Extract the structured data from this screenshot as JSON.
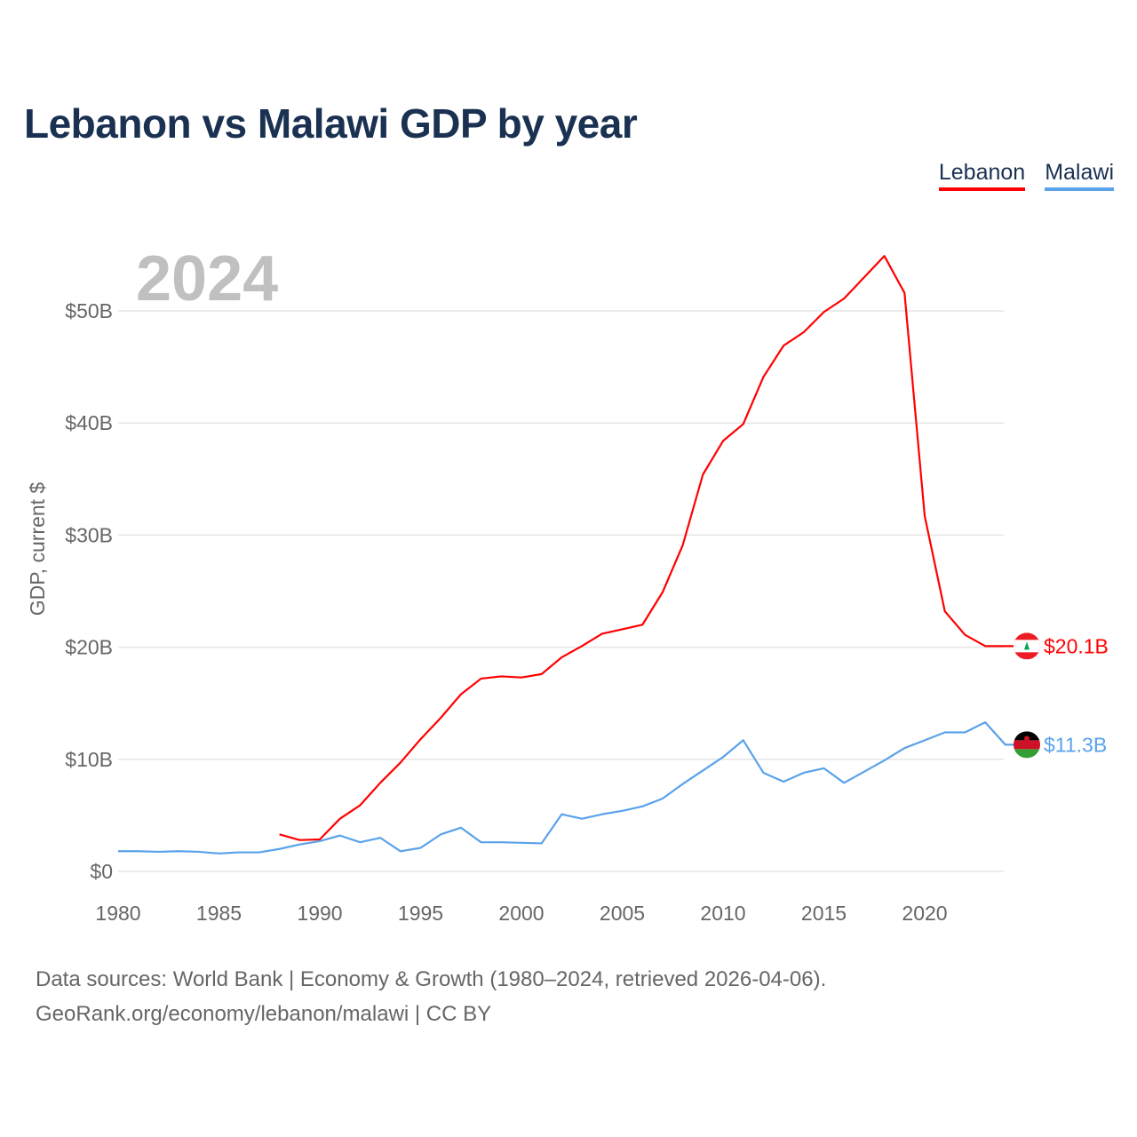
{
  "title": "Lebanon vs Malawi GDP by year",
  "legend": [
    "Lebanon",
    "Malawi"
  ],
  "year_label": "2024",
  "footer": {
    "line1": "Data sources: World Bank | Economy & Growth (1980–2024, retrieved 2026-04-06).",
    "line2": "GeoRank.org/economy/lebanon/malawi | CC BY"
  },
  "chart_data": {
    "type": "line",
    "title": "Lebanon vs Malawi GDP by year",
    "xlabel": "",
    "ylabel": "GDP, current $",
    "xlim": [
      1980,
      2024
    ],
    "ylim": [
      0,
      55
    ],
    "x_ticks": [
      1980,
      1985,
      1990,
      1995,
      2000,
      2005,
      2010,
      2015,
      2020
    ],
    "y_ticks": [
      0,
      10,
      20,
      30,
      40,
      50
    ],
    "y_tick_labels": [
      "$0",
      "$10B",
      "$20B",
      "$30B",
      "$40B",
      "$50B"
    ],
    "grid": true,
    "legend_position": "top-right",
    "series": [
      {
        "name": "Lebanon",
        "color": "#ff0000",
        "end_label": "$20.1B",
        "x": [
          1988,
          1989,
          1990,
          1991,
          1992,
          1993,
          1994,
          1995,
          1996,
          1997,
          1998,
          1999,
          2000,
          2001,
          2002,
          2003,
          2004,
          2005,
          2006,
          2007,
          2008,
          2009,
          2010,
          2011,
          2012,
          2013,
          2014,
          2015,
          2016,
          2017,
          2018,
          2019,
          2020,
          2021,
          2022,
          2023,
          2024
        ],
        "values": [
          3.3,
          2.8,
          2.85,
          4.7,
          5.9,
          7.9,
          9.7,
          11.8,
          13.7,
          15.8,
          17.2,
          17.4,
          17.3,
          17.6,
          19.1,
          20.1,
          21.2,
          21.6,
          22.0,
          24.9,
          29.1,
          35.4,
          38.4,
          39.9,
          44.1,
          46.9,
          48.1,
          49.9,
          51.1,
          53.0,
          54.9,
          51.6,
          31.7,
          23.2,
          21.1,
          20.1,
          20.1
        ]
      },
      {
        "name": "Malawi",
        "color": "#5aa2ea",
        "end_label": "$11.3B",
        "x": [
          1980,
          1981,
          1982,
          1983,
          1984,
          1985,
          1986,
          1987,
          1988,
          1989,
          1990,
          1991,
          1992,
          1993,
          1994,
          1995,
          1996,
          1997,
          1998,
          1999,
          2000,
          2001,
          2002,
          2003,
          2004,
          2005,
          2006,
          2007,
          2008,
          2009,
          2010,
          2011,
          2012,
          2013,
          2014,
          2015,
          2016,
          2017,
          2018,
          2019,
          2020,
          2021,
          2022,
          2023,
          2024
        ],
        "values": [
          1.8,
          1.8,
          1.75,
          1.8,
          1.75,
          1.6,
          1.7,
          1.7,
          2.0,
          2.4,
          2.7,
          3.2,
          2.6,
          3.0,
          1.8,
          2.1,
          3.3,
          3.9,
          2.6,
          2.6,
          2.55,
          2.5,
          5.1,
          4.7,
          5.1,
          5.4,
          5.8,
          6.5,
          7.8,
          9.0,
          10.2,
          11.7,
          8.8,
          8.0,
          8.8,
          9.2,
          7.9,
          8.9,
          9.9,
          11.0,
          11.7,
          12.4,
          12.4,
          13.3,
          11.3
        ]
      }
    ]
  }
}
